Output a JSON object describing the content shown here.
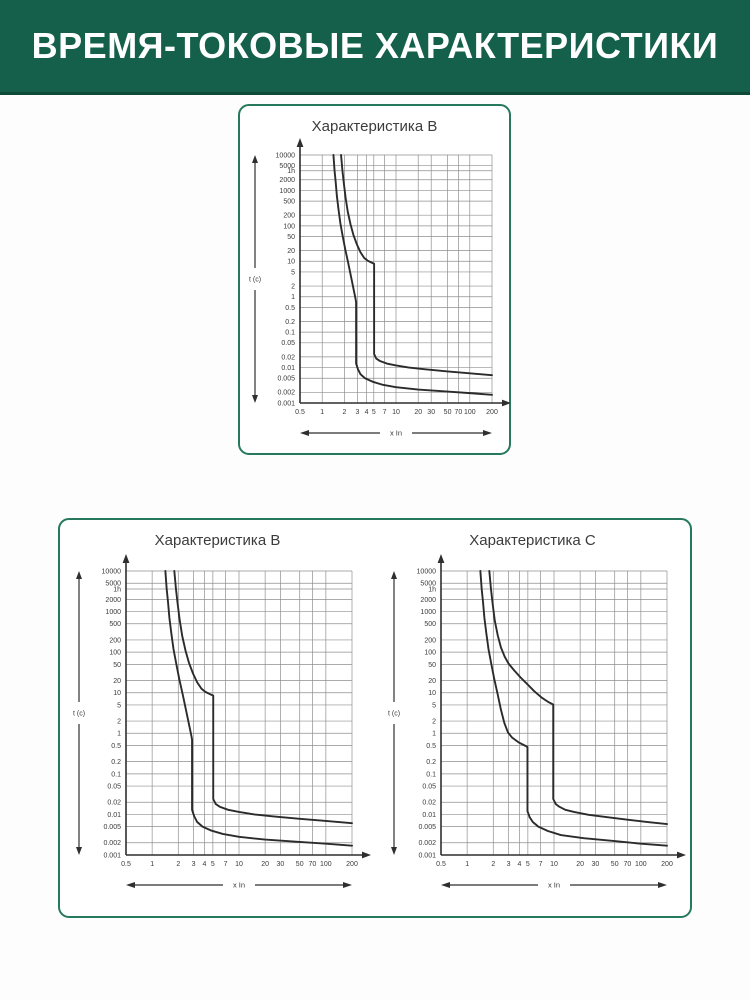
{
  "header": {
    "title": "ВРЕМЯ-ТОКОВЫЕ ХАРАКТЕРИСТИКИ"
  },
  "colors": {
    "header_bg": "#14604a",
    "header_border": "#0d4a38",
    "header_text": "#ffffff",
    "card_border": "#26795a",
    "grid_line": "#8f8f8f",
    "axis_line": "#2f2f2f",
    "curve_line": "#2b2b2b",
    "label_text": "#3a3a3a"
  },
  "chart_data": [
    {
      "id": "top-characteristic-b",
      "type": "line",
      "title": "Характеристика B",
      "xlabel": "x In",
      "ylabel": "t (c)",
      "xlim": [
        0.5,
        200
      ],
      "ylim": [
        0.001,
        10000
      ],
      "grid": true,
      "x_ticks": [
        0.5,
        1,
        2,
        3,
        4,
        5,
        7,
        10,
        20,
        30,
        50,
        70,
        100,
        200
      ],
      "x_tick_labels": [
        "0.5",
        "1",
        "2",
        "3",
        "4",
        "5",
        "7",
        "10",
        "20",
        "30",
        "50",
        "70",
        "100",
        "200"
      ],
      "y_ticks": [
        10000,
        5000,
        3600,
        2000,
        1000,
        500,
        200,
        100,
        50,
        20,
        10,
        5,
        2,
        1,
        0.5,
        0.2,
        0.1,
        0.05,
        0.02,
        0.01,
        0.005,
        0.002,
        0.001
      ],
      "y_tick_labels": [
        "10000",
        "5000",
        "1h",
        "2000",
        "1000",
        "500",
        "200",
        "100",
        "50",
        "20",
        "10",
        "5",
        "2",
        "1",
        "0.5",
        "0.2",
        "0.1",
        "0.05",
        "0.02",
        "0.01",
        "0.005",
        "0.002",
        "0.001"
      ],
      "series": [
        {
          "name": "lower-trip-limit",
          "points": [
            [
              1.42,
              10000
            ],
            [
              1.47,
              3600
            ],
            [
              1.52,
              1800
            ],
            [
              1.58,
              700
            ],
            [
              1.66,
              300
            ],
            [
              1.76,
              120
            ],
            [
              1.9,
              50
            ],
            [
              2.05,
              22
            ],
            [
              2.25,
              9
            ],
            [
              2.45,
              3.8
            ],
            [
              2.65,
              1.7
            ],
            [
              2.82,
              0.9
            ],
            [
              2.88,
              0.7
            ],
            [
              2.88,
              0.013
            ],
            [
              3.05,
              0.009
            ],
            [
              3.3,
              0.0065
            ],
            [
              3.8,
              0.005
            ],
            [
              4.8,
              0.004
            ],
            [
              6.5,
              0.0033
            ],
            [
              10,
              0.0028
            ],
            [
              20,
              0.0024
            ],
            [
              50,
              0.0021
            ],
            [
              100,
              0.0019
            ],
            [
              200,
              0.0017
            ]
          ]
        },
        {
          "name": "upper-trip-limit",
          "points": [
            [
              1.8,
              10000
            ],
            [
              1.88,
              3600
            ],
            [
              1.97,
              1500
            ],
            [
              2.08,
              600
            ],
            [
              2.22,
              250
            ],
            [
              2.42,
              110
            ],
            [
              2.65,
              55
            ],
            [
              2.95,
              30
            ],
            [
              3.3,
              18
            ],
            [
              3.7,
              12.5
            ],
            [
              4.1,
              10.5
            ],
            [
              4.6,
              9.3
            ],
            [
              5.05,
              8.5
            ],
            [
              5.05,
              0.024
            ],
            [
              5.4,
              0.018
            ],
            [
              6,
              0.0155
            ],
            [
              7.5,
              0.013
            ],
            [
              10,
              0.0115
            ],
            [
              15,
              0.01
            ],
            [
              25,
              0.0089
            ],
            [
              50,
              0.0078
            ],
            [
              100,
              0.0069
            ],
            [
              200,
              0.0061
            ]
          ]
        }
      ]
    },
    {
      "id": "bottom-characteristic-b",
      "type": "line",
      "title": "Характеристика B",
      "xlabel": "x In",
      "ylabel": "t (c)",
      "xlim": [
        0.5,
        200
      ],
      "ylim": [
        0.001,
        10000
      ],
      "grid": true,
      "x_ticks": [
        0.5,
        1,
        2,
        3,
        4,
        5,
        7,
        10,
        20,
        30,
        50,
        70,
        100,
        200
      ],
      "x_tick_labels": [
        "0.5",
        "1",
        "2",
        "3",
        "4",
        "5",
        "7",
        "10",
        "20",
        "30",
        "50",
        "70",
        "100",
        "200"
      ],
      "y_ticks": [
        10000,
        5000,
        3600,
        2000,
        1000,
        500,
        200,
        100,
        50,
        20,
        10,
        5,
        2,
        1,
        0.5,
        0.2,
        0.1,
        0.05,
        0.02,
        0.01,
        0.005,
        0.002,
        0.001
      ],
      "y_tick_labels": [
        "10000",
        "5000",
        "1h",
        "2000",
        "1000",
        "500",
        "200",
        "100",
        "50",
        "20",
        "10",
        "5",
        "2",
        "1",
        "0.5",
        "0.2",
        "0.1",
        "0.05",
        "0.02",
        "0.01",
        "0.005",
        "0.002",
        "0.001"
      ],
      "series": [
        {
          "name": "lower-trip-limit",
          "points": [
            [
              1.42,
              10000
            ],
            [
              1.47,
              3600
            ],
            [
              1.52,
              1800
            ],
            [
              1.58,
              700
            ],
            [
              1.66,
              300
            ],
            [
              1.76,
              120
            ],
            [
              1.9,
              50
            ],
            [
              2.05,
              22
            ],
            [
              2.25,
              9
            ],
            [
              2.45,
              3.8
            ],
            [
              2.65,
              1.7
            ],
            [
              2.82,
              0.9
            ],
            [
              2.88,
              0.7
            ],
            [
              2.88,
              0.013
            ],
            [
              3.05,
              0.009
            ],
            [
              3.3,
              0.0065
            ],
            [
              3.8,
              0.005
            ],
            [
              4.8,
              0.004
            ],
            [
              6.5,
              0.0033
            ],
            [
              10,
              0.0028
            ],
            [
              20,
              0.0024
            ],
            [
              50,
              0.0021
            ],
            [
              100,
              0.0019
            ],
            [
              200,
              0.0017
            ]
          ]
        },
        {
          "name": "upper-trip-limit",
          "points": [
            [
              1.8,
              10000
            ],
            [
              1.88,
              3600
            ],
            [
              1.97,
              1500
            ],
            [
              2.08,
              600
            ],
            [
              2.22,
              250
            ],
            [
              2.42,
              110
            ],
            [
              2.65,
              55
            ],
            [
              2.95,
              30
            ],
            [
              3.3,
              18
            ],
            [
              3.7,
              12.5
            ],
            [
              4.1,
              10.5
            ],
            [
              4.6,
              9.3
            ],
            [
              5.05,
              8.5
            ],
            [
              5.05,
              0.024
            ],
            [
              5.4,
              0.018
            ],
            [
              6,
              0.0155
            ],
            [
              7.5,
              0.013
            ],
            [
              10,
              0.0115
            ],
            [
              15,
              0.01
            ],
            [
              25,
              0.0089
            ],
            [
              50,
              0.0078
            ],
            [
              100,
              0.0069
            ],
            [
              200,
              0.0061
            ]
          ]
        }
      ]
    },
    {
      "id": "bottom-characteristic-c",
      "type": "line",
      "title": "Характеристика C",
      "xlabel": "x In",
      "ylabel": "t (c)",
      "xlim": [
        0.5,
        200
      ],
      "ylim": [
        0.001,
        10000
      ],
      "grid": true,
      "x_ticks": [
        0.5,
        1,
        2,
        3,
        4,
        5,
        7,
        10,
        20,
        30,
        50,
        70,
        100,
        200
      ],
      "x_tick_labels": [
        "0.5",
        "1",
        "2",
        "3",
        "4",
        "5",
        "7",
        "10",
        "20",
        "30",
        "50",
        "70",
        "100",
        "200"
      ],
      "y_ticks": [
        10000,
        5000,
        3600,
        2000,
        1000,
        500,
        200,
        100,
        50,
        20,
        10,
        5,
        2,
        1,
        0.5,
        0.2,
        0.1,
        0.05,
        0.02,
        0.01,
        0.005,
        0.002,
        0.001
      ],
      "y_tick_labels": [
        "10000",
        "5000",
        "1h",
        "2000",
        "1000",
        "500",
        "200",
        "100",
        "50",
        "20",
        "10",
        "5",
        "2",
        "1",
        "0.5",
        "0.2",
        "0.1",
        "0.05",
        "0.02",
        "0.01",
        "0.005",
        "0.002",
        "0.001"
      ],
      "series": [
        {
          "name": "lower-trip-limit",
          "points": [
            [
              1.42,
              10000
            ],
            [
              1.47,
              3600
            ],
            [
              1.52,
              1800
            ],
            [
              1.58,
              700
            ],
            [
              1.66,
              300
            ],
            [
              1.76,
              120
            ],
            [
              1.9,
              50
            ],
            [
              2.05,
              22
            ],
            [
              2.25,
              9
            ],
            [
              2.45,
              3.8
            ],
            [
              2.68,
              1.8
            ],
            [
              2.95,
              1.05
            ],
            [
              3.3,
              0.78
            ],
            [
              3.9,
              0.6
            ],
            [
              4.6,
              0.5
            ],
            [
              4.95,
              0.46
            ],
            [
              4.95,
              0.012
            ],
            [
              5.25,
              0.0085
            ],
            [
              5.7,
              0.0065
            ],
            [
              6.6,
              0.005
            ],
            [
              8.5,
              0.0039
            ],
            [
              12,
              0.0031
            ],
            [
              22,
              0.0026
            ],
            [
              50,
              0.0022
            ],
            [
              100,
              0.0019
            ],
            [
              200,
              0.0017
            ]
          ]
        },
        {
          "name": "upper-trip-limit",
          "points": [
            [
              1.8,
              10000
            ],
            [
              1.88,
              3600
            ],
            [
              1.97,
              1500
            ],
            [
              2.08,
              600
            ],
            [
              2.25,
              260
            ],
            [
              2.45,
              130
            ],
            [
              2.7,
              78
            ],
            [
              3.0,
              52
            ],
            [
              3.5,
              35
            ],
            [
              4.1,
              24
            ],
            [
              4.9,
              16.5
            ],
            [
              5.9,
              11
            ],
            [
              7.2,
              7.6
            ],
            [
              8.6,
              5.9
            ],
            [
              9.8,
              5.1
            ],
            [
              9.8,
              0.024
            ],
            [
              10.5,
              0.018
            ],
            [
              11.5,
              0.0155
            ],
            [
              13.5,
              0.013
            ],
            [
              17,
              0.0115
            ],
            [
              25,
              0.0098
            ],
            [
              40,
              0.0086
            ],
            [
              70,
              0.0074
            ],
            [
              120,
              0.0065
            ],
            [
              200,
              0.0058
            ]
          ]
        }
      ]
    }
  ]
}
